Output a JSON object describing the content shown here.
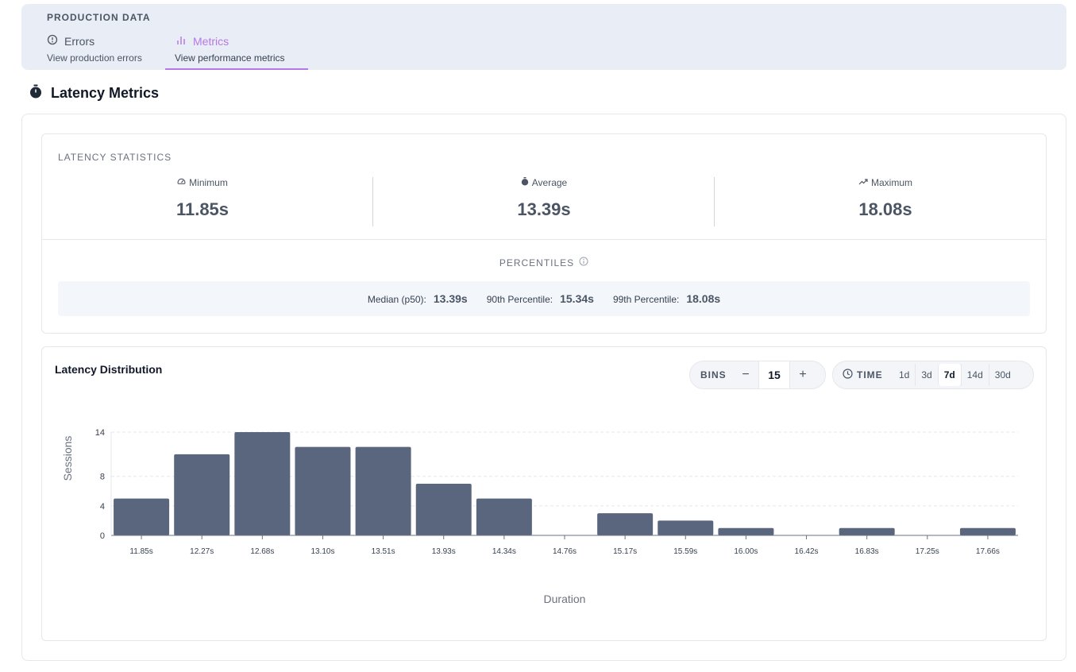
{
  "production": {
    "section_label": "PRODUCTION DATA",
    "tabs": [
      {
        "label": "Errors",
        "sublabel": "View production errors"
      },
      {
        "label": "Metrics",
        "sublabel": "View performance metrics"
      }
    ],
    "accent_color": "#b678e6"
  },
  "page": {
    "title": "Latency Metrics"
  },
  "stats": {
    "section_label": "LATENCY STATISTICS",
    "minimum": {
      "label": "Minimum",
      "value": "11.85s"
    },
    "average": {
      "label": "Average",
      "value": "13.39s"
    },
    "maximum": {
      "label": "Maximum",
      "value": "18.08s"
    }
  },
  "percentiles": {
    "section_label": "PERCENTILES",
    "p50": {
      "label": "Median (p50):",
      "value": "13.39s"
    },
    "p90": {
      "label": "90th Percentile:",
      "value": "15.34s"
    },
    "p99": {
      "label": "99th Percentile:",
      "value": "18.08s"
    }
  },
  "distribution": {
    "title": "Latency Distribution",
    "bins_label": "BINS",
    "bins_value": "15",
    "decrement": "−",
    "increment": "+",
    "time_label": "TIME",
    "time_options": [
      "1d",
      "3d",
      "7d",
      "14d",
      "30d"
    ],
    "time_selected": "7d"
  },
  "chart_data": {
    "type": "bar",
    "categories": [
      "11.85s",
      "12.27s",
      "12.68s",
      "13.10s",
      "13.51s",
      "13.93s",
      "14.34s",
      "14.76s",
      "15.17s",
      "15.59s",
      "16.00s",
      "16.42s",
      "16.83s",
      "17.25s",
      "17.66s"
    ],
    "values": [
      5,
      11,
      14,
      12,
      12,
      7,
      5,
      0,
      3,
      2,
      1,
      0,
      1,
      0,
      1
    ],
    "xlabel": "Duration",
    "ylabel": "Sessions",
    "yticks": [
      0,
      4,
      8,
      14
    ],
    "ylim": [
      0,
      14
    ],
    "bar_color": "#5a667d",
    "grid": true
  }
}
